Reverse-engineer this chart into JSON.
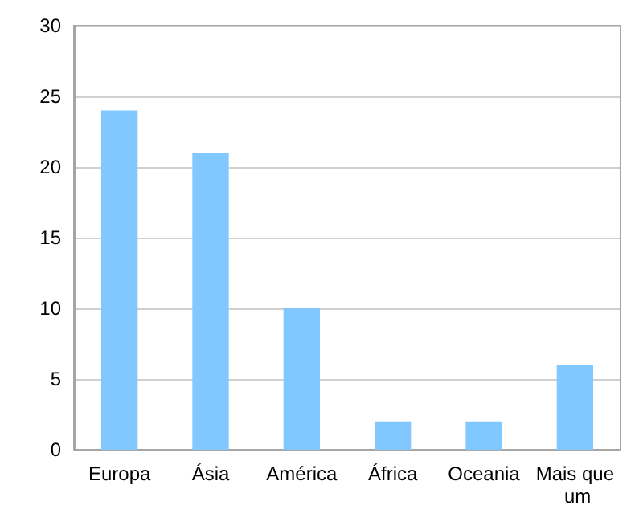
{
  "chart_data": {
    "type": "bar",
    "categories": [
      "Europa",
      "Ásia",
      "América",
      "África",
      "Oceania",
      "Mais que um"
    ],
    "values": [
      24,
      21,
      10,
      2,
      2,
      6
    ],
    "color": "#80c8ff",
    "ylim": [
      0,
      30
    ],
    "yticks": [
      0,
      5,
      10,
      15,
      20,
      25,
      30
    ],
    "grid": "y"
  }
}
